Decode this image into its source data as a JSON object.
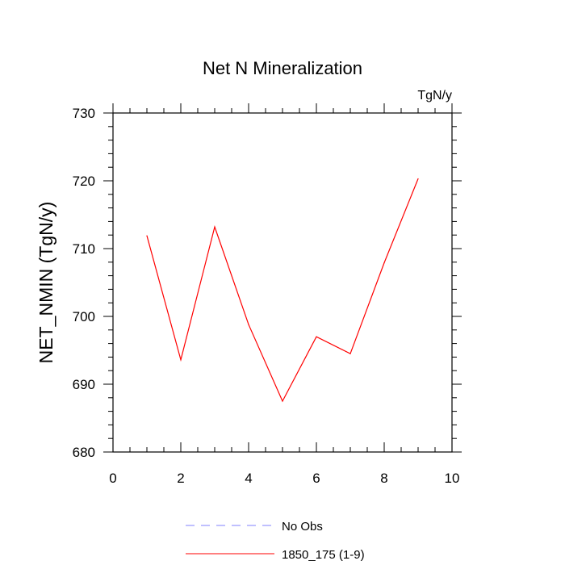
{
  "chart_data": {
    "type": "line",
    "title": "Net N Mineralization",
    "units": "TgN/y",
    "xlabel": "",
    "ylabel": "NET_NMIN  (TgN/y)",
    "xlim": [
      0,
      10
    ],
    "ylim": [
      680,
      730
    ],
    "xticks": [
      0,
      2,
      4,
      6,
      8,
      10
    ],
    "yticks": [
      680,
      690,
      700,
      710,
      720,
      730
    ],
    "grid": false,
    "legend_position": "bottom",
    "series": [
      {
        "name": "No Obs",
        "color": "#8080ff",
        "style": "dashed",
        "x": [],
        "values": []
      },
      {
        "name": "1850_175 (1-9)",
        "color": "#ff0000",
        "style": "solid",
        "x": [
          1,
          2,
          3,
          4,
          5,
          6,
          7,
          8,
          9
        ],
        "values": [
          711.9,
          693.6,
          713.2,
          698.8,
          687.5,
          697.0,
          694.5,
          707.9,
          720.3
        ]
      }
    ]
  }
}
